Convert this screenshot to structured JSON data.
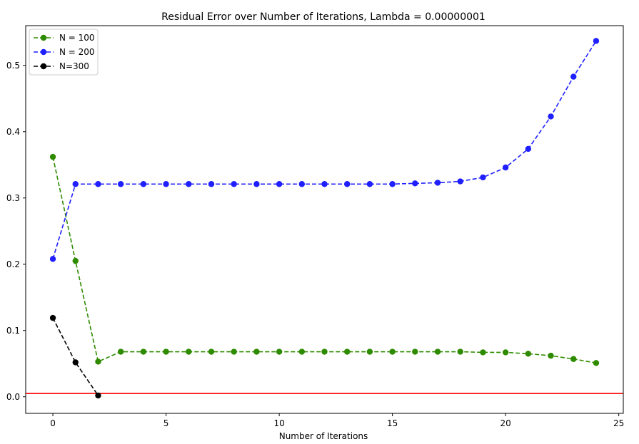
{
  "chart_data": {
    "type": "line",
    "title": "Residual Error over Number of Iterations, Lambda = 0.00000001",
    "xlabel": "Number of Iterations",
    "ylabel": "",
    "xlim": [
      -1.2,
      25.2
    ],
    "ylim": [
      -0.025,
      0.56
    ],
    "xticks": [
      0,
      5,
      10,
      15,
      20,
      25
    ],
    "yticks": [
      0.0,
      0.1,
      0.2,
      0.3,
      0.4,
      0.5
    ],
    "xtick_labels": [
      "0",
      "5",
      "10",
      "15",
      "20",
      "25"
    ],
    "ytick_labels": [
      "0.0",
      "0.1",
      "0.2",
      "0.3",
      "0.4",
      "0.5"
    ],
    "grid": false,
    "legend_position": "upper-left",
    "series": [
      {
        "name": "N = 100",
        "color": "#2e8b00",
        "line_style": "dashed",
        "marker": "circle",
        "x": [
          0,
          1,
          2,
          3,
          4,
          5,
          6,
          7,
          8,
          9,
          10,
          11,
          12,
          13,
          14,
          15,
          16,
          17,
          18,
          19,
          20,
          21,
          22,
          23,
          24
        ],
        "values": [
          0.362,
          0.205,
          0.053,
          0.068,
          0.068,
          0.068,
          0.068,
          0.068,
          0.068,
          0.068,
          0.068,
          0.068,
          0.068,
          0.068,
          0.068,
          0.068,
          0.068,
          0.068,
          0.068,
          0.067,
          0.067,
          0.065,
          0.062,
          0.057,
          0.051
        ]
      },
      {
        "name": "N = 200",
        "color": "#1f1fff",
        "line_style": "dashed",
        "marker": "circle",
        "x": [
          0,
          1,
          2,
          3,
          4,
          5,
          6,
          7,
          8,
          9,
          10,
          11,
          12,
          13,
          14,
          15,
          16,
          17,
          18,
          19,
          20,
          21,
          22,
          23,
          24
        ],
        "values": [
          0.208,
          0.321,
          0.321,
          0.321,
          0.321,
          0.321,
          0.321,
          0.321,
          0.321,
          0.321,
          0.321,
          0.321,
          0.321,
          0.321,
          0.321,
          0.321,
          0.322,
          0.323,
          0.325,
          0.331,
          0.346,
          0.374,
          0.423,
          0.483,
          0.537
        ]
      },
      {
        "name": "N=300",
        "color": "#000000",
        "line_style": "dashed",
        "marker": "circle",
        "x": [
          0,
          1,
          2
        ],
        "values": [
          0.119,
          0.052,
          0.002
        ]
      }
    ],
    "hline": {
      "y": 0.005,
      "color": "#ff0000"
    }
  }
}
